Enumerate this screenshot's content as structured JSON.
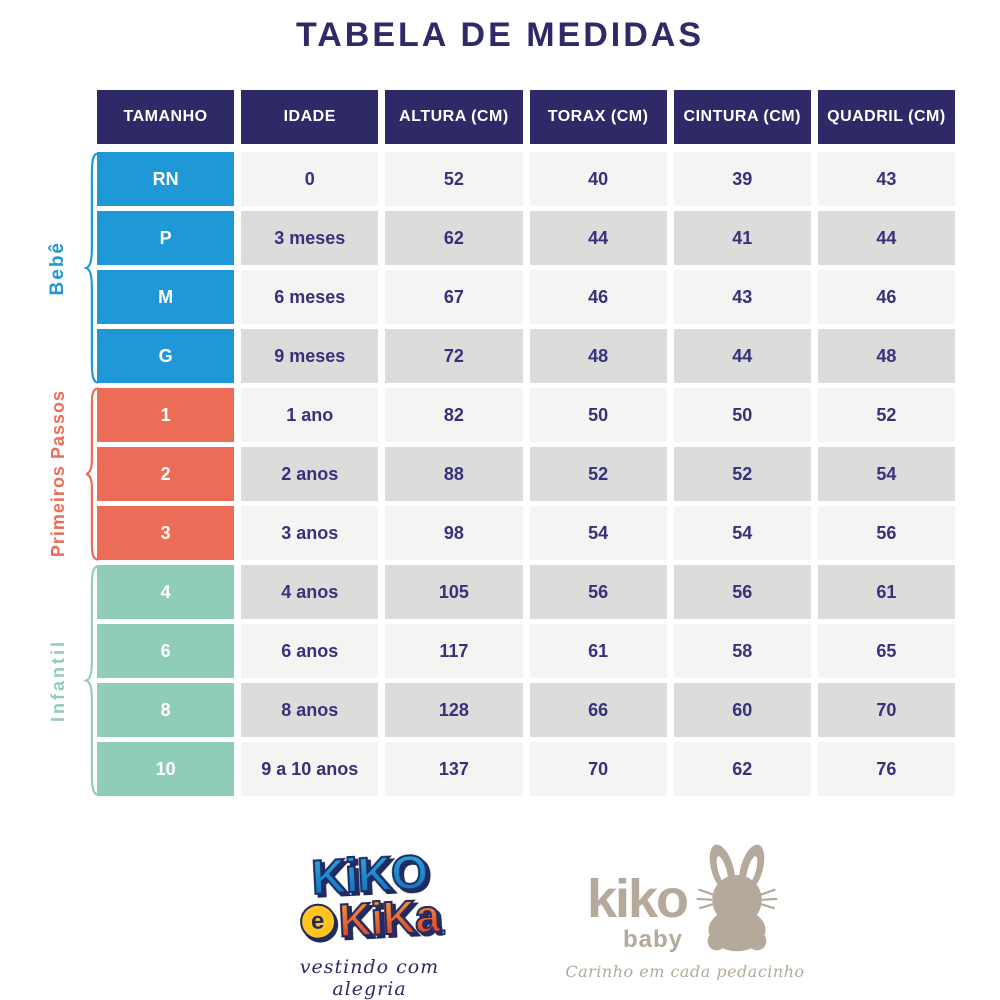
{
  "title": "TABELA DE MEDIDAS",
  "colors": {
    "header_bg": "#2e2a68",
    "value_text": "#37317b",
    "bebe": "#1e98d6",
    "primeiros_passos": "#ed6c57",
    "infantil": "#90cdb7",
    "row_light": "#f4f4f2",
    "row_dark": "#dcdcdb",
    "brand_taupe": "#b5a99c",
    "brand_yellow": "#ffc41f"
  },
  "table": {
    "headers": [
      "TAMANHO",
      "IDADE",
      "ALTURA (CM)",
      "TORAX (CM)",
      "CINTURA (CM)",
      "QUADRIL (CM)"
    ],
    "groups": [
      {
        "label": "Bebê"
      },
      {
        "label": "Primeiros Passos"
      },
      {
        "label": "Infantil"
      }
    ],
    "rows": [
      {
        "size": "RN",
        "idade": "0",
        "altura": "52",
        "torax": "40",
        "cintura": "39",
        "quadril": "43"
      },
      {
        "size": "P",
        "idade": "3 meses",
        "altura": "62",
        "torax": "44",
        "cintura": "41",
        "quadril": "44"
      },
      {
        "size": "M",
        "idade": "6 meses",
        "altura": "67",
        "torax": "46",
        "cintura": "43",
        "quadril": "46"
      },
      {
        "size": "G",
        "idade": "9 meses",
        "altura": "72",
        "torax": "48",
        "cintura": "44",
        "quadril": "48"
      },
      {
        "size": "1",
        "idade": "1 ano",
        "altura": "82",
        "torax": "50",
        "cintura": "50",
        "quadril": "52"
      },
      {
        "size": "2",
        "idade": "2 anos",
        "altura": "88",
        "torax": "52",
        "cintura": "52",
        "quadril": "54"
      },
      {
        "size": "3",
        "idade": "3 anos",
        "altura": "98",
        "torax": "54",
        "cintura": "54",
        "quadril": "56"
      },
      {
        "size": "4",
        "idade": "4 anos",
        "altura": "105",
        "torax": "56",
        "cintura": "56",
        "quadril": "61"
      },
      {
        "size": "6",
        "idade": "6 anos",
        "altura": "117",
        "torax": "61",
        "cintura": "58",
        "quadril": "65"
      },
      {
        "size": "8",
        "idade": "8 anos",
        "altura": "128",
        "torax": "66",
        "cintura": "60",
        "quadril": "70"
      },
      {
        "size": "10",
        "idade": "9 a 10 anos",
        "altura": "137",
        "torax": "70",
        "cintura": "62",
        "quadril": "76"
      }
    ]
  },
  "chart_data": {
    "type": "table",
    "title": "TABELA DE MEDIDAS",
    "columns": [
      "TAMANHO",
      "IDADE",
      "ALTURA (CM)",
      "TORAX (CM)",
      "CINTURA (CM)",
      "QUADRIL (CM)"
    ],
    "groups": [
      {
        "label": "Bebê",
        "rows": [
          [
            "RN",
            "0",
            52,
            40,
            39,
            43
          ],
          [
            "P",
            "3 meses",
            62,
            44,
            41,
            44
          ],
          [
            "M",
            "6 meses",
            67,
            46,
            43,
            46
          ],
          [
            "G",
            "9 meses",
            72,
            48,
            44,
            48
          ]
        ]
      },
      {
        "label": "Primeiros Passos",
        "rows": [
          [
            "1",
            "1 ano",
            82,
            50,
            50,
            52
          ],
          [
            "2",
            "2 anos",
            88,
            52,
            52,
            54
          ],
          [
            "3",
            "3 anos",
            98,
            54,
            54,
            56
          ]
        ]
      },
      {
        "label": "Infantil",
        "rows": [
          [
            "4",
            "4 anos",
            105,
            56,
            56,
            61
          ],
          [
            "6",
            "6 anos",
            117,
            61,
            58,
            65
          ],
          [
            "8",
            "8 anos",
            128,
            66,
            60,
            70
          ],
          [
            "10",
            "9 a 10 anos",
            137,
            70,
            62,
            76
          ]
        ]
      }
    ]
  },
  "footer": {
    "brand_left": {
      "word1": "KiKO",
      "connector": "e",
      "word2": "KiKa",
      "tagline": "vestindo com alegria"
    },
    "brand_right": {
      "name": "kiko",
      "sub": "baby",
      "tagline": "Carinho em cada pedacinho"
    }
  }
}
